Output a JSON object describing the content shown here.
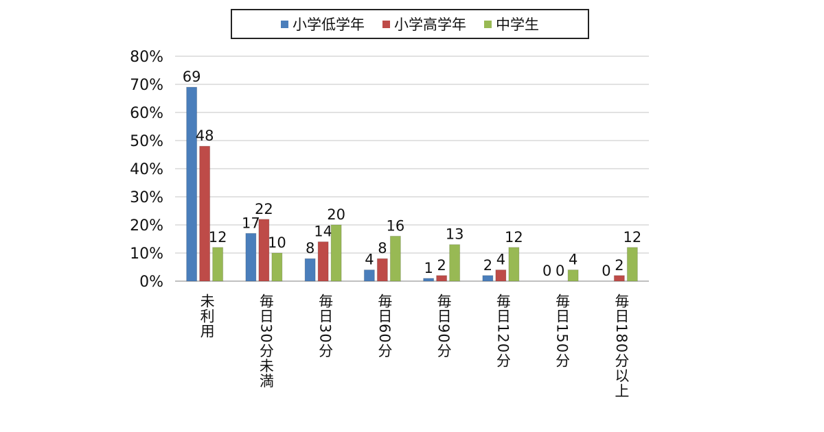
{
  "chart_data": {
    "type": "bar",
    "categories": [
      "未利用",
      "毎日30分未満",
      "毎日30分",
      "毎日60分",
      "毎日90分",
      "毎日120分",
      "毎日150分",
      "毎日180分以上"
    ],
    "series": [
      {
        "name": "小学低学年",
        "color": "#4a7ebb",
        "values": [
          69,
          17,
          8,
          4,
          1,
          2,
          0,
          0
        ]
      },
      {
        "name": "小学高学年",
        "color": "#be4b48",
        "values": [
          48,
          22,
          14,
          8,
          2,
          4,
          0,
          2
        ]
      },
      {
        "name": "中学生",
        "color": "#98b954",
        "values": [
          12,
          10,
          20,
          16,
          13,
          12,
          4,
          12
        ]
      }
    ],
    "yticks": [
      "0%",
      "10%",
      "20%",
      "30%",
      "40%",
      "50%",
      "60%",
      "70%",
      "80%"
    ],
    "ylim": [
      0,
      80
    ],
    "grid": true,
    "legend_position": "top"
  }
}
